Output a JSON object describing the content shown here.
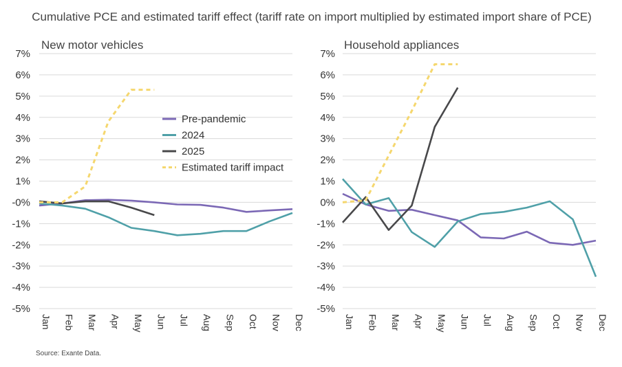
{
  "title": "Cumulative PCE and estimated tariff effect (tariff rate on import multiplied by estimated import share of PCE)",
  "source": "Source: Exante Data.",
  "colors": {
    "Pre-pandemic": "#7b68b5",
    "2024": "#4fa0a8",
    "2025": "#48484a",
    "Estimated tariff impact": "#f5d76e",
    "grid": "#d9d9d9",
    "text": "#333333"
  },
  "chart_data": [
    {
      "type": "line",
      "title": "New motor vehicles",
      "categories": [
        "Jan",
        "Feb",
        "Mar",
        "Apr",
        "May",
        "Jun",
        "Jul",
        "Aug",
        "Sep",
        "Oct",
        "Nov",
        "Dec"
      ],
      "ylim": [
        -5,
        7
      ],
      "yticks": [
        -5,
        -4,
        -3,
        -2,
        -1,
        0,
        1,
        2,
        3,
        4,
        5,
        6,
        7
      ],
      "ytick_labels": [
        "-5%",
        "-4%",
        "-3%",
        "-2%",
        "-1%",
        "-0%",
        "1%",
        "2%",
        "3%",
        "4%",
        "5%",
        "6%",
        "7%"
      ],
      "grid": "horizontal",
      "legend": {
        "position": "upper-middle",
        "entries": [
          "Pre-pandemic",
          "2024",
          "2025",
          "Estimated tariff impact"
        ]
      },
      "series": [
        {
          "name": "Pre-pandemic",
          "values": [
            -0.15,
            -0.05,
            0.1,
            0.12,
            0.08,
            0.0,
            -0.1,
            -0.12,
            -0.25,
            -0.45,
            -0.38,
            -0.32
          ]
        },
        {
          "name": "2024",
          "values": [
            -0.05,
            -0.15,
            -0.3,
            -0.7,
            -1.2,
            -1.35,
            -1.55,
            -1.48,
            -1.35,
            -1.35,
            -0.9,
            -0.5
          ]
        },
        {
          "name": "2025",
          "values": [
            0.05,
            -0.05,
            0.05,
            0.05,
            -0.25,
            -0.6,
            null,
            null,
            null,
            null,
            null,
            null
          ]
        },
        {
          "name": "Estimated tariff impact",
          "values": [
            0.0,
            0.0,
            0.75,
            3.8,
            5.3,
            5.3,
            null,
            null,
            null,
            null,
            null,
            null
          ]
        }
      ]
    },
    {
      "type": "line",
      "title": "Household appliances",
      "categories": [
        "Jan",
        "Feb",
        "Mar",
        "Apr",
        "May",
        "Jun",
        "Jul",
        "Aug",
        "Sep",
        "Oct",
        "Nov",
        "Dec"
      ],
      "ylim": [
        -5,
        7
      ],
      "yticks": [
        -5,
        -4,
        -3,
        -2,
        -1,
        0,
        1,
        2,
        3,
        4,
        5,
        6,
        7
      ],
      "ytick_labels": [
        "-5%",
        "-4%",
        "-3%",
        "-2%",
        "-1%",
        "0%",
        "1%",
        "2%",
        "3%",
        "4%",
        "5%",
        "6%",
        "7%"
      ],
      "grid": "horizontal",
      "series": [
        {
          "name": "Pre-pandemic",
          "values": [
            0.4,
            -0.1,
            -0.4,
            -0.35,
            -0.6,
            -0.85,
            -1.65,
            -1.7,
            -1.38,
            -1.9,
            -2.0,
            -1.8
          ]
        },
        {
          "name": "2024",
          "values": [
            1.1,
            -0.1,
            0.2,
            -1.4,
            -2.1,
            -0.9,
            -0.55,
            -0.45,
            -0.25,
            0.05,
            -0.8,
            -3.5
          ]
        },
        {
          "name": "2025",
          "values": [
            -0.95,
            0.25,
            -1.3,
            -0.15,
            3.55,
            5.4,
            null,
            null,
            null,
            null,
            null,
            null
          ]
        },
        {
          "name": "Estimated tariff impact",
          "values": [
            0.0,
            0.1,
            2.2,
            4.3,
            6.5,
            6.5,
            null,
            null,
            null,
            null,
            null,
            null
          ]
        }
      ]
    }
  ]
}
